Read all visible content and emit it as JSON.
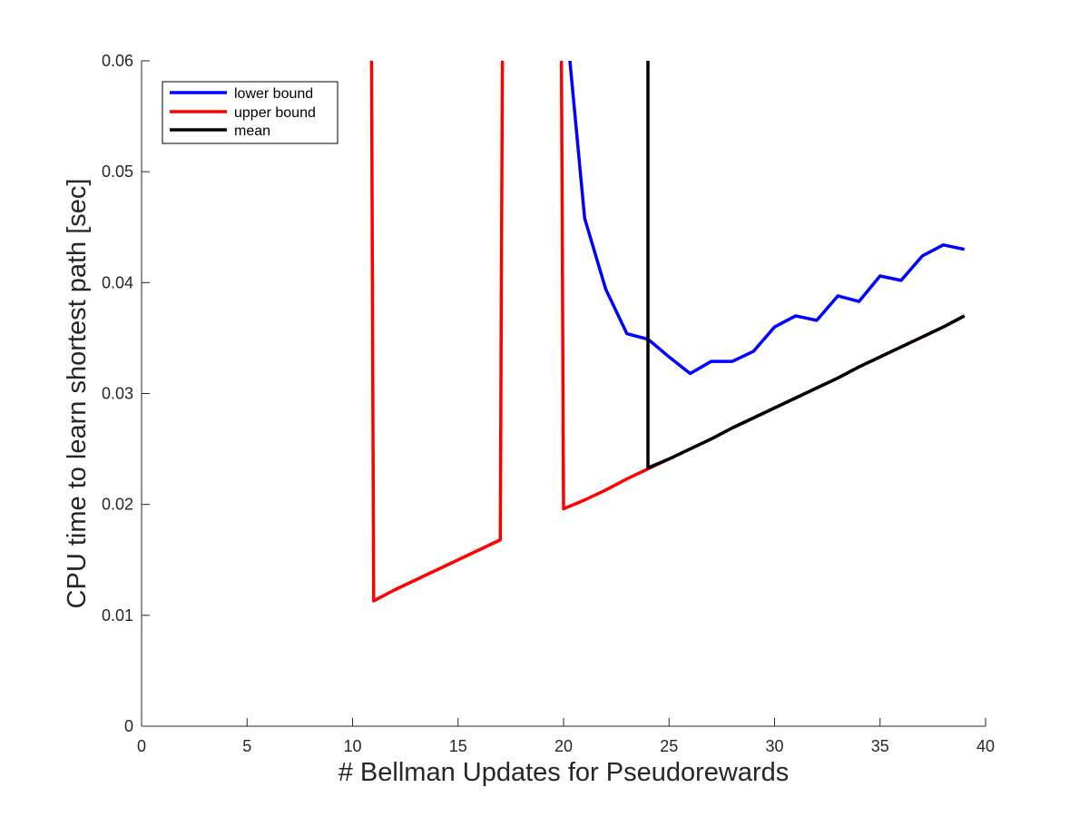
{
  "chart_data": {
    "type": "line",
    "title": "",
    "xlabel": "# Bellman Updates for Pseudorewards",
    "ylabel": "CPU time to learn shortest path [sec]",
    "xlim": [
      0,
      40
    ],
    "ylim": [
      0,
      0.06
    ],
    "xticks": [
      0,
      5,
      10,
      15,
      20,
      25,
      30,
      35,
      40
    ],
    "xtick_labels": [
      "0",
      "5",
      "10",
      "15",
      "20",
      "25",
      "30",
      "35",
      "40"
    ],
    "yticks": [
      0,
      0.01,
      0.02,
      0.03,
      0.04,
      0.05,
      0.06
    ],
    "ytick_labels": [
      "0",
      "0.01",
      "0.02",
      "0.03",
      "0.04",
      "0.05",
      "0.06"
    ],
    "grid": false,
    "legend_position": "top-left",
    "series": [
      {
        "name": "lower bound",
        "color": "#0000ff",
        "x": [
          20.3,
          21,
          22,
          23,
          24,
          25,
          26,
          27,
          28,
          29,
          30,
          31,
          32,
          33,
          34,
          35,
          36,
          37,
          38,
          39
        ],
        "y": [
          0.06,
          0.0458,
          0.0394,
          0.0354,
          0.0349,
          0.0333,
          0.0318,
          0.0329,
          0.0329,
          0.0338,
          0.036,
          0.037,
          0.0366,
          0.0388,
          0.0383,
          0.0406,
          0.0402,
          0.0424,
          0.0434,
          0.043
        ]
      },
      {
        "name": "upper bound",
        "color": "#ff0000",
        "x": [
          10.9,
          11,
          12,
          13,
          14,
          15,
          16,
          17,
          17.1,
          null,
          19.9,
          20,
          21,
          22,
          23,
          24,
          25,
          26,
          27,
          28,
          29,
          30,
          31,
          32,
          33,
          34,
          35,
          36,
          37,
          38,
          39
        ],
        "y": [
          0.06,
          0.0113,
          0.0123,
          0.0132,
          0.0141,
          0.015,
          0.0159,
          0.0168,
          0.06,
          null,
          0.06,
          0.0196,
          0.0204,
          0.0213,
          0.0223,
          0.0232,
          0.0241,
          0.025,
          0.0259,
          0.0269,
          0.0278,
          0.0287,
          0.0296,
          0.0305,
          0.0314,
          0.0324,
          0.0333,
          0.0342,
          0.0351,
          0.036,
          0.037
        ]
      },
      {
        "name": "mean",
        "color": "#000000",
        "x": [
          24,
          24,
          25,
          26,
          27,
          28,
          29,
          30,
          31,
          32,
          33,
          34,
          35,
          36,
          37,
          38,
          39
        ],
        "y": [
          0.06,
          0.0233,
          0.0241,
          0.025,
          0.0259,
          0.0269,
          0.0278,
          0.0287,
          0.0296,
          0.0305,
          0.0314,
          0.0324,
          0.0333,
          0.0342,
          0.0351,
          0.036,
          0.037
        ]
      }
    ]
  }
}
